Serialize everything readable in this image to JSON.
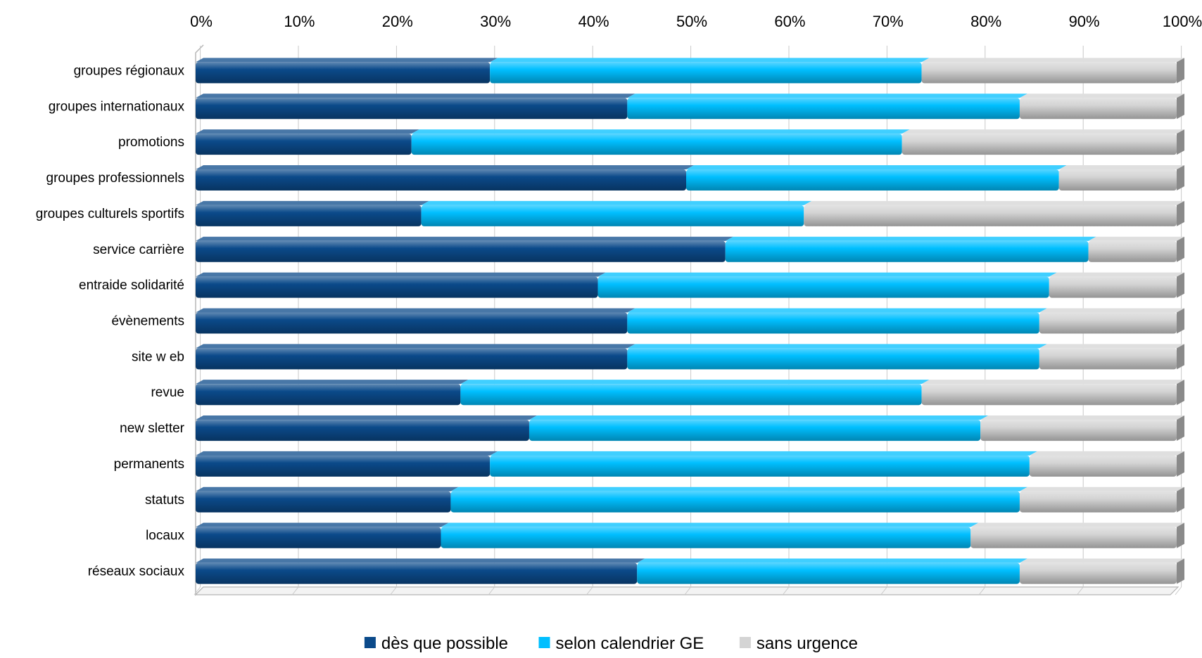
{
  "chart_data": {
    "type": "bar",
    "orientation": "horizontal",
    "stacked": "percent",
    "title": "",
    "xlabel": "",
    "ylabel": "",
    "xlim": [
      0,
      100
    ],
    "x_ticks": [
      "0%",
      "10%",
      "20%",
      "30%",
      "40%",
      "50%",
      "60%",
      "70%",
      "80%",
      "90%",
      "100%"
    ],
    "grid": true,
    "legend_position": "bottom",
    "categories": [
      "groupes régionaux",
      "groupes internationaux",
      "promotions",
      "groupes professionnels",
      "groupes culturels sportifs",
      "service carrière",
      "entraide solidarité",
      "évènements",
      "site w eb",
      "revue",
      "new sletter",
      "permanents",
      "statuts",
      "locaux",
      "réseaux sociaux"
    ],
    "series": [
      {
        "name": "dès que possible",
        "color": "#0b4a8a",
        "values": [
          30,
          44,
          22,
          50,
          23,
          54,
          41,
          44,
          44,
          27,
          34,
          30,
          26,
          25,
          45
        ]
      },
      {
        "name": "selon calendrier GE",
        "color": "#00bfff",
        "values": [
          44,
          40,
          50,
          38,
          39,
          37,
          46,
          42,
          42,
          47,
          46,
          55,
          58,
          54,
          39
        ]
      },
      {
        "name": "sans urgence",
        "color": "#d4d4d4",
        "values": [
          26,
          16,
          28,
          12,
          38,
          9,
          13,
          14,
          14,
          26,
          20,
          15,
          16,
          21,
          16
        ]
      }
    ]
  }
}
